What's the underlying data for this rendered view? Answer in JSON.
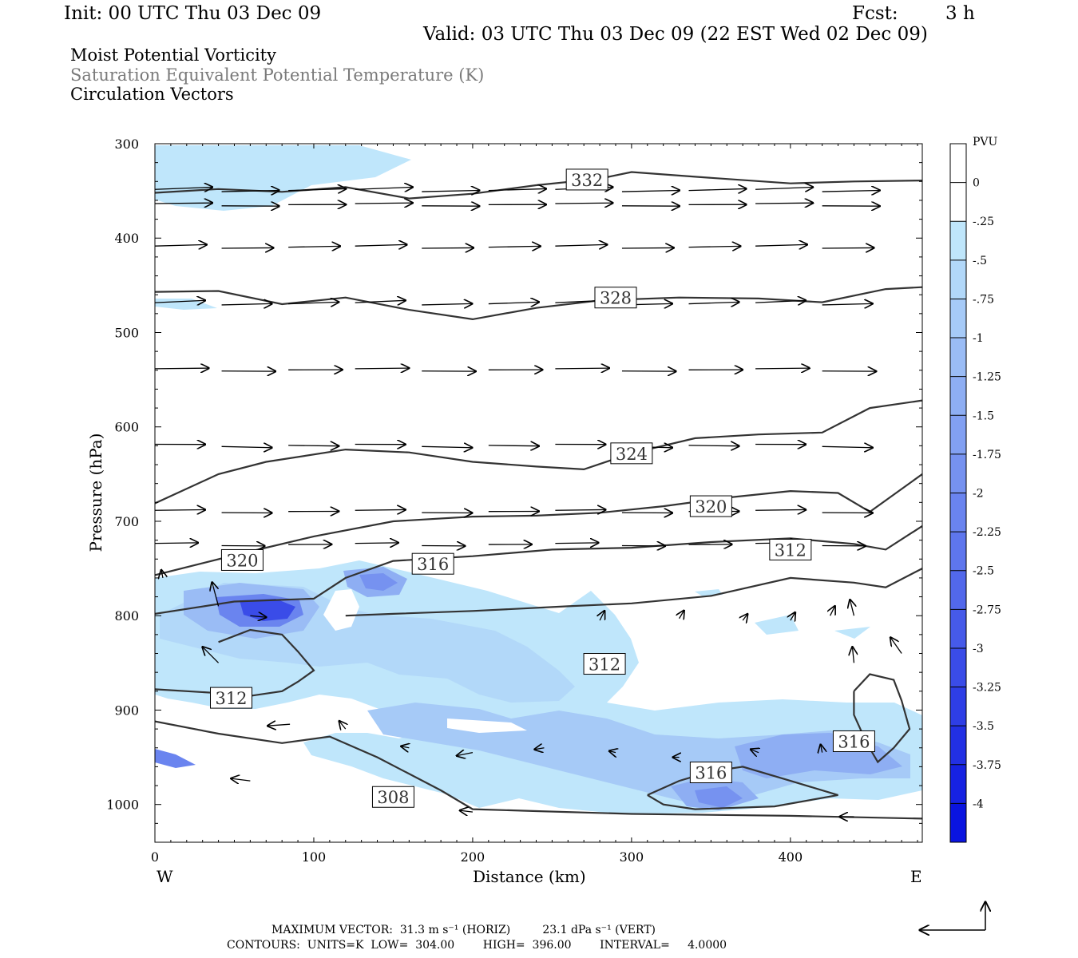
{
  "header": {
    "init": "Init: 00 UTC Thu 03 Dec 09",
    "fcst_label": "Fcst:",
    "fcst_value": "3 h",
    "valid": "Valid: 03 UTC Thu 03 Dec 09 (22 EST Wed 02 Dec 09)",
    "field1": "Moist Potential Vorticity",
    "field2": "Saturation Equivalent Potential Temperature (K)",
    "field3": "Circulation Vectors"
  },
  "colors": {
    "contour": "#333333",
    "field2_text": "#7a7a7a",
    "pv_scale": [
      "#ffffff",
      "#ffffff",
      "#bfe6fb",
      "#b2d8f9",
      "#a6caf7",
      "#9abcf5",
      "#8eaef3",
      "#82a0f2",
      "#7692f0",
      "#6a84ef",
      "#5e76ed",
      "#5268eb",
      "#465ae9",
      "#3a4ce8",
      "#2e3ee6",
      "#2230e4",
      "#1622e2",
      "#0a14e0"
    ]
  },
  "footer": {
    "line1": "MAXIMUM VECTOR:  31.3 m s⁻¹ (HORIZ)         23.1 dPa s⁻¹ (VERT)",
    "line2": "CONTOURS:  UNITS=K  LOW=  304.00        HIGH=  396.00        INTERVAL=     4.0000"
  },
  "chart_data": {
    "type": "cross-section",
    "xlabel": "Distance (km)",
    "ylabel": "Pressure (hPa)",
    "xlim": [
      0,
      483
    ],
    "ylim": [
      1040,
      300
    ],
    "x_ticks": [
      "0",
      "100",
      "200",
      "300",
      "400"
    ],
    "y_ticks": [
      "300",
      "400",
      "500",
      "600",
      "700",
      "800",
      "900",
      "1000"
    ],
    "x_end_labels": {
      "left": "W",
      "right": "E"
    },
    "colorbar": {
      "unit": "PVU",
      "labels": [
        "0",
        "-.25",
        "-.5",
        "-.75",
        "-1",
        "-1.25",
        "-1.5",
        "-1.75",
        "-2",
        "-2.25",
        "-2.5",
        "-2.75",
        "-3",
        "-3.25",
        "-3.5",
        "-3.75",
        "-4"
      ]
    },
    "theta_es_contours": [
      {
        "label": "332",
        "label_pos": [
          272,
          338
        ],
        "points": [
          [
            0,
            352
          ],
          [
            40,
            348
          ],
          [
            80,
            351
          ],
          [
            120,
            346
          ],
          [
            160,
            358
          ],
          [
            200,
            353
          ],
          [
            240,
            344
          ],
          [
            280,
            337
          ],
          [
            300,
            330
          ],
          [
            340,
            335
          ],
          [
            400,
            342
          ],
          [
            440,
            340
          ],
          [
            483,
            339
          ]
        ]
      },
      {
        "label": "328",
        "label_pos": [
          290,
          463
        ],
        "points": [
          [
            0,
            457
          ],
          [
            40,
            456
          ],
          [
            80,
            470
          ],
          [
            120,
            463
          ],
          [
            160,
            476
          ],
          [
            200,
            486
          ],
          [
            240,
            474
          ],
          [
            280,
            466
          ],
          [
            330,
            463
          ],
          [
            380,
            464
          ],
          [
            420,
            468
          ],
          [
            460,
            454
          ],
          [
            483,
            452
          ]
        ]
      },
      {
        "label": "324",
        "label_pos": [
          300,
          628
        ],
        "points": [
          [
            0,
            681
          ],
          [
            40,
            650
          ],
          [
            70,
            637
          ],
          [
            120,
            624
          ],
          [
            160,
            627
          ],
          [
            200,
            637
          ],
          [
            240,
            642
          ],
          [
            270,
            645
          ],
          [
            300,
            628
          ],
          [
            340,
            612
          ],
          [
            380,
            608
          ],
          [
            420,
            606
          ],
          [
            450,
            580
          ],
          [
            483,
            572
          ]
        ]
      },
      {
        "label": "320",
        "label_pos": [
          350,
          684
        ],
        "points": [
          [
            0,
            757
          ],
          [
            50,
            736
          ],
          [
            100,
            716
          ],
          [
            150,
            700
          ],
          [
            200,
            695
          ],
          [
            240,
            694
          ],
          [
            280,
            691
          ],
          [
            320,
            684
          ],
          [
            360,
            675
          ],
          [
            400,
            668
          ],
          [
            430,
            670
          ],
          [
            450,
            690
          ],
          [
            483,
            650
          ]
        ]
      },
      {
        "label": "320",
        "label_pos": [
          55,
          741
        ],
        "points": []
      },
      {
        "label": "316",
        "label_pos": [
          175,
          745
        ],
        "points": [
          [
            0,
            798
          ],
          [
            50,
            785
          ],
          [
            100,
            782
          ],
          [
            120,
            760
          ],
          [
            150,
            742
          ],
          [
            200,
            737
          ],
          [
            250,
            730
          ],
          [
            300,
            728
          ],
          [
            350,
            722
          ],
          [
            400,
            718
          ],
          [
            440,
            724
          ],
          [
            460,
            730
          ],
          [
            483,
            705
          ]
        ]
      },
      {
        "label": "312",
        "label_pos": [
          400,
          730
        ],
        "points": [
          [
            120,
            800
          ],
          [
            150,
            798
          ],
          [
            200,
            795
          ],
          [
            260,
            790
          ],
          [
            300,
            787
          ],
          [
            350,
            779
          ],
          [
            400,
            760
          ],
          [
            440,
            765
          ],
          [
            460,
            770
          ],
          [
            483,
            750
          ]
        ]
      },
      {
        "label": "312",
        "label_pos": [
          283,
          851
        ],
        "points": [
          [
            40,
            828
          ],
          [
            60,
            815
          ],
          [
            80,
            820
          ],
          [
            90,
            838
          ],
          [
            100,
            858
          ],
          [
            90,
            870
          ],
          [
            80,
            880
          ],
          [
            60,
            885
          ],
          [
            40,
            882
          ],
          [
            0,
            878
          ]
        ]
      },
      {
        "label": "312",
        "label_pos": [
          48,
          887
        ],
        "points": []
      },
      {
        "label": "308",
        "label_pos": [
          150,
          992
        ],
        "points": [
          [
            0,
            912
          ],
          [
            40,
            925
          ],
          [
            80,
            935
          ],
          [
            110,
            928
          ],
          [
            140,
            950
          ],
          [
            180,
            985
          ],
          [
            200,
            1005
          ],
          [
            240,
            1007
          ],
          [
            300,
            1010
          ],
          [
            400,
            1012
          ],
          [
            483,
            1015
          ]
        ]
      },
      {
        "label": "316",
        "label_pos": [
          350,
          966
        ],
        "points": [
          [
            310,
            990
          ],
          [
            330,
            975
          ],
          [
            350,
            965
          ],
          [
            370,
            960
          ],
          [
            400,
            975
          ],
          [
            430,
            990
          ],
          [
            390,
            1002
          ],
          [
            340,
            1005
          ],
          [
            320,
            1000
          ],
          [
            310,
            990
          ]
        ]
      },
      {
        "label": "316",
        "label_pos": [
          440,
          933
        ],
        "points": [
          [
            440,
            880
          ],
          [
            450,
            862
          ],
          [
            465,
            868
          ],
          [
            470,
            890
          ],
          [
            475,
            920
          ],
          [
            465,
            940
          ],
          [
            455,
            955
          ],
          [
            448,
            935
          ],
          [
            440,
            905
          ],
          [
            440,
            880
          ]
        ]
      }
    ]
  }
}
